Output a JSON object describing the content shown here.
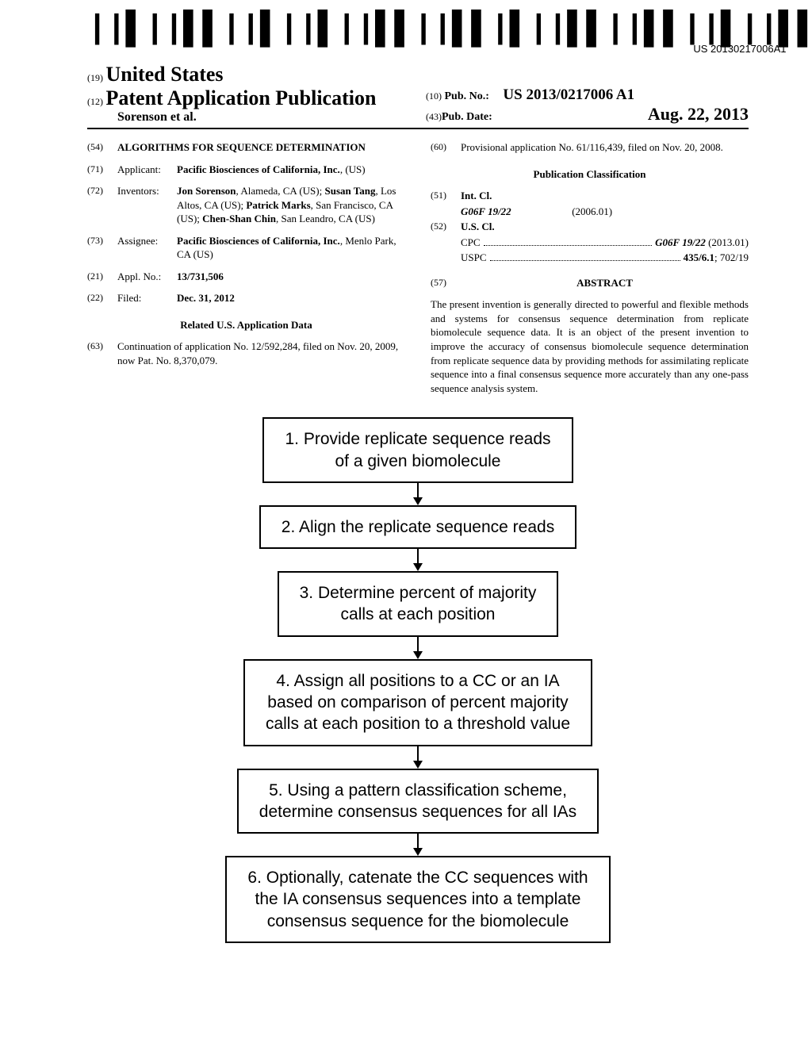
{
  "barcode_text": "US 20130217006A1",
  "header": {
    "country_num": "(19)",
    "country": "United States",
    "pub_num": "(12)",
    "pub_title": "Patent Application Publication",
    "authors": "Sorenson et al.",
    "pubno_num": "(10)",
    "pubno_label": "Pub. No.:",
    "pubno_value": "US 2013/0217006 A1",
    "pubdate_num": "(43)",
    "pubdate_label": "Pub. Date:",
    "pubdate_value": "Aug. 22, 2013"
  },
  "left_col": {
    "title_num": "(54)",
    "title": "ALGORITHMS FOR SEQUENCE DETERMINATION",
    "applicant_num": "(71)",
    "applicant_label": "Applicant:",
    "applicant_value": "Pacific Biosciences of California, Inc.",
    "applicant_loc": ", (US)",
    "inventors_num": "(72)",
    "inventors_label": "Inventors:",
    "inventors_value": "Jon Sorenson, Alameda, CA (US); Susan Tang, Los Altos, CA (US); Patrick Marks, San Francisco, CA (US); Chen-Shan Chin, San Leandro, CA (US)",
    "inv1_name": "Jon Sorenson",
    "inv1_loc": ", Alameda, CA (US); ",
    "inv2_name": "Susan Tang",
    "inv2_loc": ", Los Altos, CA (US); ",
    "inv3_name": "Patrick Marks",
    "inv3_loc": ", San Francisco, CA (US); ",
    "inv4_name": "Chen-Shan Chin",
    "inv4_loc": ", San Leandro, CA (US)",
    "assignee_num": "(73)",
    "assignee_label": "Assignee:",
    "assignee_value": "Pacific Biosciences of California, Inc.",
    "assignee_loc": ", Menlo Park, CA (US)",
    "applno_num": "(21)",
    "applno_label": "Appl. No.:",
    "applno_value": "13/731,506",
    "filed_num": "(22)",
    "filed_label": "Filed:",
    "filed_value": "Dec. 31, 2012",
    "related_title": "Related U.S. Application Data",
    "continuation_num": "(63)",
    "continuation_text": "Continuation of application No. 12/592,284, filed on Nov. 20, 2009, now Pat. No. 8,370,079."
  },
  "right_col": {
    "provisional_num": "(60)",
    "provisional_text": "Provisional application No. 61/116,439, filed on Nov. 20, 2008.",
    "class_title": "Publication Classification",
    "intcl_num": "(51)",
    "intcl_label": "Int. Cl.",
    "intcl_code": "G06F 19/22",
    "intcl_year": "(2006.01)",
    "uscl_num": "(52)",
    "uscl_label": "U.S. Cl.",
    "cpc_label": "CPC",
    "cpc_value": "G06F 19/22 (2013.01)",
    "cpc_code": "G06F 19/22",
    "cpc_year": " (2013.01)",
    "uspc_label": "USPC",
    "uspc_value": "435/6.1; 702/19",
    "uspc_bold": "435/6.1",
    "uspc_rest": "; 702/19",
    "abstract_num": "(57)",
    "abstract_label": "ABSTRACT",
    "abstract_text": "The present invention is generally directed to powerful and flexible methods and systems for consensus sequence determination from replicate biomolecule sequence data. It is an object of the present invention to improve the accuracy of consensus biomolecule sequence determination from replicate sequence data by providing methods for assimilating replicate sequence into a final consensus sequence more accurately than any one-pass sequence analysis system."
  },
  "flowchart": {
    "boxes": [
      "1. Provide replicate sequence reads\nof a given biomolecule",
      "2. Align the replicate sequence reads",
      "3. Determine percent of majority\ncalls at each position",
      "4. Assign all positions to a CC or an IA\nbased on comparison of percent majority\ncalls at each position to a threshold value",
      "5. Using a pattern classification scheme,\ndetermine consensus sequences for all IAs",
      "6. Optionally, catenate the CC sequences with\nthe IA consensus sequences into a template\nconsensus sequence for the biomolecule"
    ]
  }
}
